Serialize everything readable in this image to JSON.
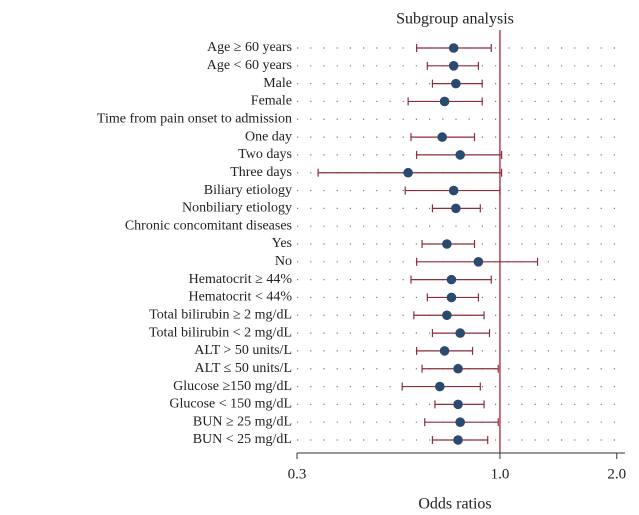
{
  "chart_data": {
    "type": "forest",
    "title": "Subgroup analysis",
    "xlabel": "Odds ratios",
    "categories": [
      "Age ≥ 60 years",
      "Age < 60 years",
      "Male",
      "Female",
      "Time from pain onset to admission",
      "One day",
      "Two days",
      "Three days",
      "Biliary etiology",
      "Nonbiliary etiology",
      "Chronic concomitant diseases",
      "Yes",
      "No",
      "Hematocrit ≥ 44%",
      "Hematocrit < 44%",
      "Total bilirubin ≥ 2 mg/dL",
      "Total bilirubin < 2 mg/dL",
      "ALT > 50 units/L",
      "ALT ≤ 50 units/L",
      "Glucose ≥150 mg/dL",
      "Glucose < 150 mg/dL",
      "BUN ≥ 25 mg/dL",
      "BUN < 25 mg/dL"
    ],
    "values": [
      0.76,
      0.76,
      0.77,
      0.72,
      null,
      0.71,
      0.79,
      0.58,
      0.76,
      0.77,
      null,
      0.73,
      0.88,
      0.75,
      0.75,
      0.73,
      0.79,
      0.72,
      0.78,
      0.7,
      0.78,
      0.79,
      0.78
    ],
    "lower": [
      0.61,
      0.65,
      0.67,
      0.58,
      null,
      0.59,
      0.61,
      0.34,
      0.57,
      0.67,
      null,
      0.63,
      0.61,
      0.59,
      0.65,
      0.6,
      0.67,
      0.61,
      0.63,
      0.56,
      0.68,
      0.64,
      0.67
    ],
    "upper": [
      0.95,
      0.88,
      0.9,
      0.9,
      null,
      0.86,
      1.01,
      1.01,
      1.0,
      0.89,
      null,
      0.86,
      1.25,
      0.95,
      0.88,
      0.91,
      0.94,
      0.85,
      0.99,
      0.89,
      0.91,
      0.99,
      0.93
    ],
    "xscale": "log",
    "xlim": [
      0.3,
      2.1
    ],
    "xticks": [
      0.3,
      {
        "value": 1,
        "label": "1.0"
      },
      {
        "value": 2,
        "label": "2.0"
      }
    ],
    "reference_line": 1,
    "grid": true,
    "point_color": "#2b4a6f",
    "ci_color": "#8c2d3c",
    "reference_color": "#a3283a"
  }
}
